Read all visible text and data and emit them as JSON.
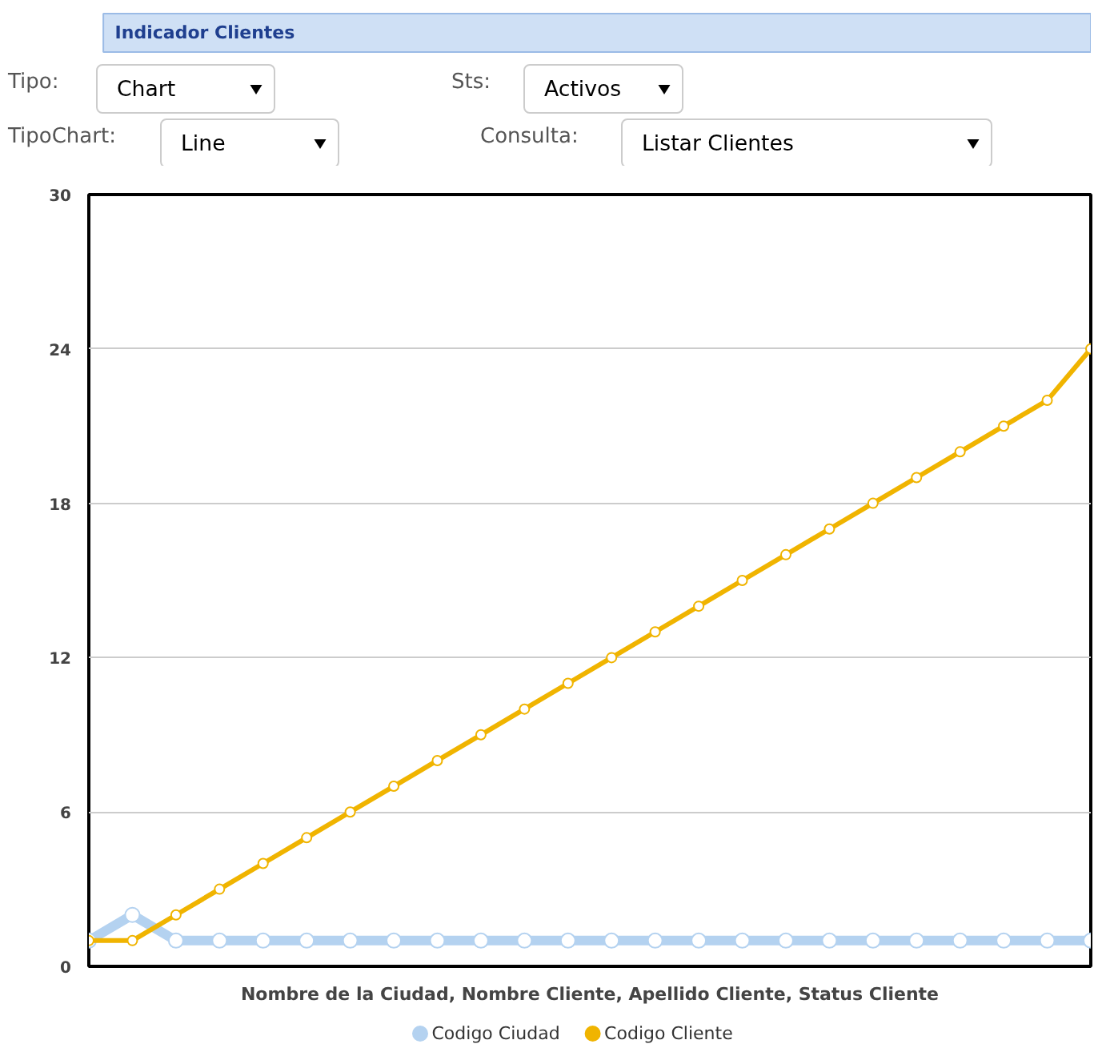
{
  "chart_data": {
    "type": "line",
    "title": "Indicador Clientes",
    "annotations": [
      "Tipo:",
      "Chart",
      "Sts:",
      "Activos",
      "TipoChart:",
      "Line",
      "Consulta:",
      "Listar Clientes"
    ],
    "categories": [
      null,
      null,
      null,
      null,
      null,
      null,
      null,
      null,
      null,
      null,
      null,
      null,
      null,
      null,
      null,
      null,
      null,
      null,
      null,
      null,
      null,
      null,
      null,
      null
    ],
    "xlabel": "Nombre de la Ciudad, Nombre Cliente, Apellido Cliente, Status Cliente",
    "series": [
      {
        "name": "Codigo Ciudad",
        "color": "#b4d2f0",
        "values": [
          1,
          2,
          1,
          1,
          1,
          1,
          1,
          1,
          1,
          1,
          1,
          1,
          1,
          1,
          1,
          1,
          1,
          1,
          1,
          1,
          1,
          1,
          1,
          1
        ]
      },
      {
        "name": "Codigo Cliente",
        "color": "#f0b400",
        "values": [
          1,
          1,
          2,
          3,
          4,
          5,
          6,
          7,
          8,
          9,
          10,
          11,
          12,
          13,
          14,
          15,
          16,
          17,
          18,
          19,
          20,
          21,
          22,
          24
        ]
      }
    ],
    "ylim": [
      0,
      30
    ],
    "yticks": [
      0,
      6,
      12,
      18,
      24,
      30
    ],
    "grid": "y",
    "legend": "bottom",
    "marker": "circle",
    "line_style": "solid"
  }
}
